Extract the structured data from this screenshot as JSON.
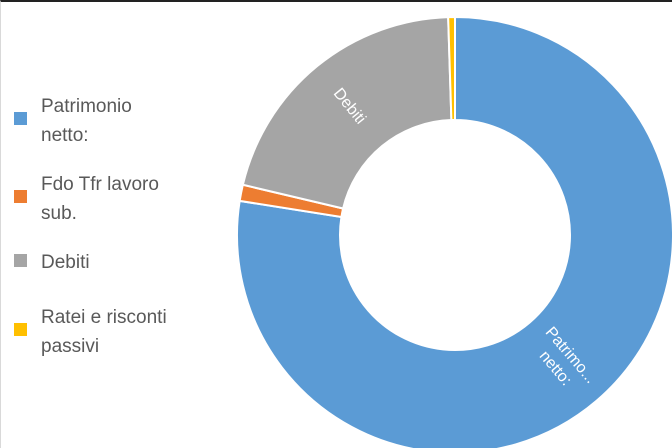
{
  "chart_data": {
    "type": "pie",
    "donut": true,
    "legend_position": "left",
    "series": [
      {
        "name": "Patrimonio netto:",
        "legend_label": "Patrimonio\nnetto:",
        "slice_label": [
          "Patrimo...",
          "netto:"
        ],
        "value": 77.5,
        "color": "#5b9bd5"
      },
      {
        "name": "Fdo Tfr lavoro sub.",
        "legend_label": "Fdo Tfr lavoro\nsub.",
        "slice_label": [],
        "value": 1.2,
        "color": "#ed7d31"
      },
      {
        "name": "Debiti",
        "legend_label": "Debiti",
        "slice_label": [
          "Debiti"
        ],
        "value": 20.8,
        "color": "#a5a5a5"
      },
      {
        "name": "Ratei e risconti passivi",
        "legend_label": "Ratei e risconti\npassivi",
        "slice_label": [],
        "value": 0.5,
        "color": "#ffc000"
      }
    ]
  }
}
